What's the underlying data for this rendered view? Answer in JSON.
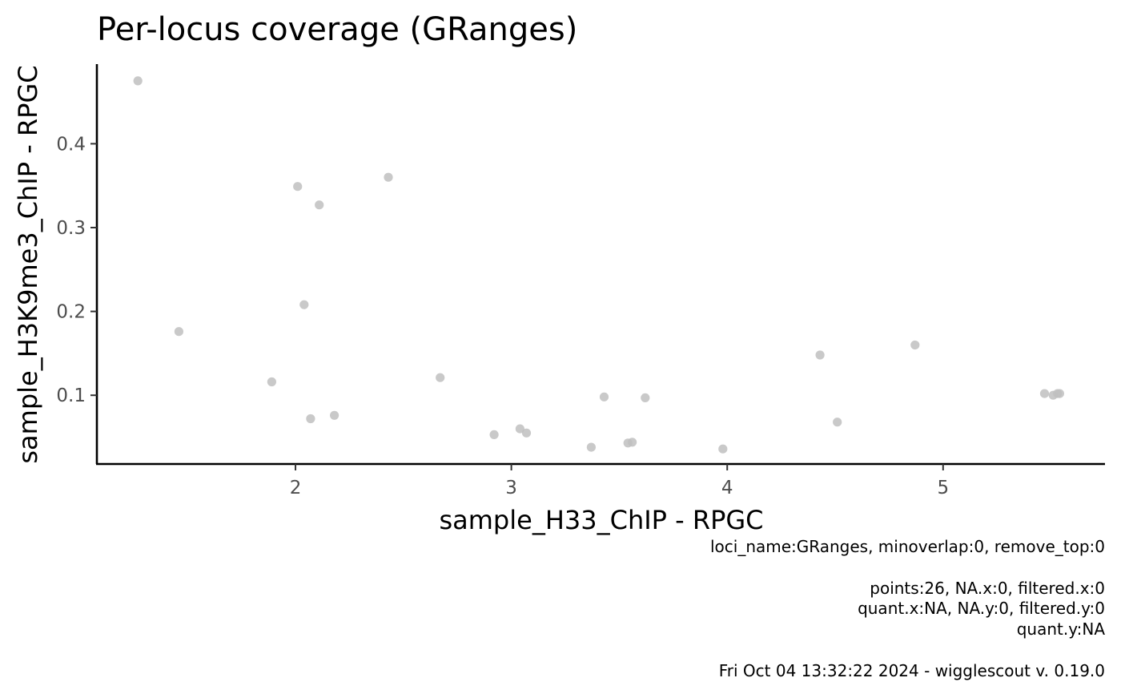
{
  "chart_data": {
    "type": "scatter",
    "title": "Per-locus coverage (GRanges)",
    "xlabel": "sample_H33_ChIP - RPGC",
    "ylabel": "sample_H3K9me3_ChIP - RPGC",
    "xlim": [
      1.08,
      5.75
    ],
    "ylim": [
      0.018,
      0.495
    ],
    "xticks": [
      2,
      3,
      4,
      5
    ],
    "xtick_labels": [
      "2",
      "3",
      "4",
      "5"
    ],
    "yticks": [
      0.1,
      0.2,
      0.3,
      0.4
    ],
    "ytick_labels": [
      "0.1",
      "0.2",
      "0.3",
      "0.4"
    ],
    "grid": false,
    "legend": "none",
    "point_color": "#bfbfbf",
    "points": [
      {
        "x": 1.27,
        "y": 0.475
      },
      {
        "x": 1.46,
        "y": 0.176
      },
      {
        "x": 1.89,
        "y": 0.116
      },
      {
        "x": 2.01,
        "y": 0.349
      },
      {
        "x": 2.04,
        "y": 0.208
      },
      {
        "x": 2.07,
        "y": 0.072
      },
      {
        "x": 2.11,
        "y": 0.327
      },
      {
        "x": 2.18,
        "y": 0.076
      },
      {
        "x": 2.43,
        "y": 0.36
      },
      {
        "x": 2.67,
        "y": 0.121
      },
      {
        "x": 2.92,
        "y": 0.053
      },
      {
        "x": 3.04,
        "y": 0.06
      },
      {
        "x": 3.07,
        "y": 0.055
      },
      {
        "x": 3.37,
        "y": 0.038
      },
      {
        "x": 3.43,
        "y": 0.098
      },
      {
        "x": 3.54,
        "y": 0.043
      },
      {
        "x": 3.56,
        "y": 0.044
      },
      {
        "x": 3.62,
        "y": 0.097
      },
      {
        "x": 3.98,
        "y": 0.036
      },
      {
        "x": 4.43,
        "y": 0.148
      },
      {
        "x": 4.51,
        "y": 0.068
      },
      {
        "x": 4.87,
        "y": 0.16
      },
      {
        "x": 5.47,
        "y": 0.102
      },
      {
        "x": 5.51,
        "y": 0.1
      },
      {
        "x": 5.53,
        "y": 0.102
      },
      {
        "x": 5.54,
        "y": 0.102
      }
    ]
  },
  "caption": {
    "line1": "loci_name:GRanges, minoverlap:0, remove_top:0",
    "line2": "points:26, NA.x:0, filtered.x:0",
    "line3": "quant.x:NA, NA.y:0, filtered.y:0",
    "line4": "quant.y:NA",
    "line5": "Fri Oct 04 13:32:22 2024 - wigglescout v. 0.19.0"
  }
}
